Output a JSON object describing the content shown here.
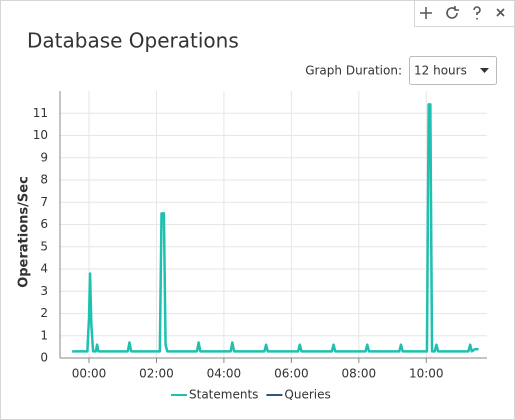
{
  "header": {
    "title": "Database Operations"
  },
  "controls": {
    "duration_label": "Graph Duration:",
    "duration_value": "12 hours"
  },
  "chart_data": {
    "type": "line",
    "y_label": "Operations/Sec",
    "x": [
      -0.5,
      -0.05,
      0.0,
      0.03,
      0.07,
      0.12,
      0.2,
      0.24,
      0.28,
      1.15,
      1.2,
      1.25,
      2.1,
      2.15,
      2.22,
      2.27,
      2.32,
      3.2,
      3.25,
      3.3,
      4.2,
      4.25,
      4.3,
      5.2,
      5.25,
      5.3,
      6.2,
      6.25,
      6.3,
      7.2,
      7.25,
      7.3,
      8.2,
      8.25,
      8.3,
      9.2,
      9.25,
      9.3,
      10.02,
      10.07,
      10.12,
      10.17,
      10.25,
      10.3,
      10.35,
      11.25,
      11.3,
      11.35,
      11.45,
      11.55
    ],
    "series": [
      {
        "name": "Statements",
        "color": "#1fc0b0",
        "values": [
          0.3,
          0.3,
          1.8,
          3.8,
          1.5,
          0.3,
          0.3,
          0.6,
          0.3,
          0.3,
          0.7,
          0.3,
          0.3,
          6.5,
          6.5,
          0.6,
          0.3,
          0.3,
          0.7,
          0.3,
          0.3,
          0.7,
          0.3,
          0.3,
          0.6,
          0.3,
          0.3,
          0.6,
          0.3,
          0.3,
          0.6,
          0.3,
          0.3,
          0.6,
          0.3,
          0.3,
          0.6,
          0.3,
          0.3,
          11.4,
          11.4,
          0.3,
          0.3,
          0.6,
          0.3,
          0.3,
          0.6,
          0.3,
          0.4,
          0.4
        ]
      },
      {
        "name": "Queries",
        "color": "#34557a",
        "values": [
          null,
          null,
          null,
          null,
          null,
          null,
          null,
          null,
          null,
          null,
          null,
          null,
          null,
          null,
          null,
          null,
          null,
          null,
          null,
          null,
          null,
          null,
          null,
          null,
          null,
          null,
          null,
          null,
          null,
          null,
          null,
          null,
          null,
          null,
          null,
          null,
          null,
          null,
          null,
          null,
          null,
          null,
          null,
          null,
          null,
          null,
          null,
          null,
          null,
          null
        ]
      }
    ],
    "xlim": [
      -0.86,
      11.8
    ],
    "xticks": [
      {
        "value": 0,
        "label": "00:00"
      },
      {
        "value": 2,
        "label": "02:00"
      },
      {
        "value": 4,
        "label": "04:00"
      },
      {
        "value": 6,
        "label": "06:00"
      },
      {
        "value": 8,
        "label": "08:00"
      },
      {
        "value": 10,
        "label": "10:00"
      }
    ],
    "ylim": [
      0,
      12
    ],
    "yticks": [
      0,
      1,
      2,
      3,
      4,
      5,
      6,
      7,
      8,
      9,
      10,
      11
    ],
    "grid": true
  }
}
